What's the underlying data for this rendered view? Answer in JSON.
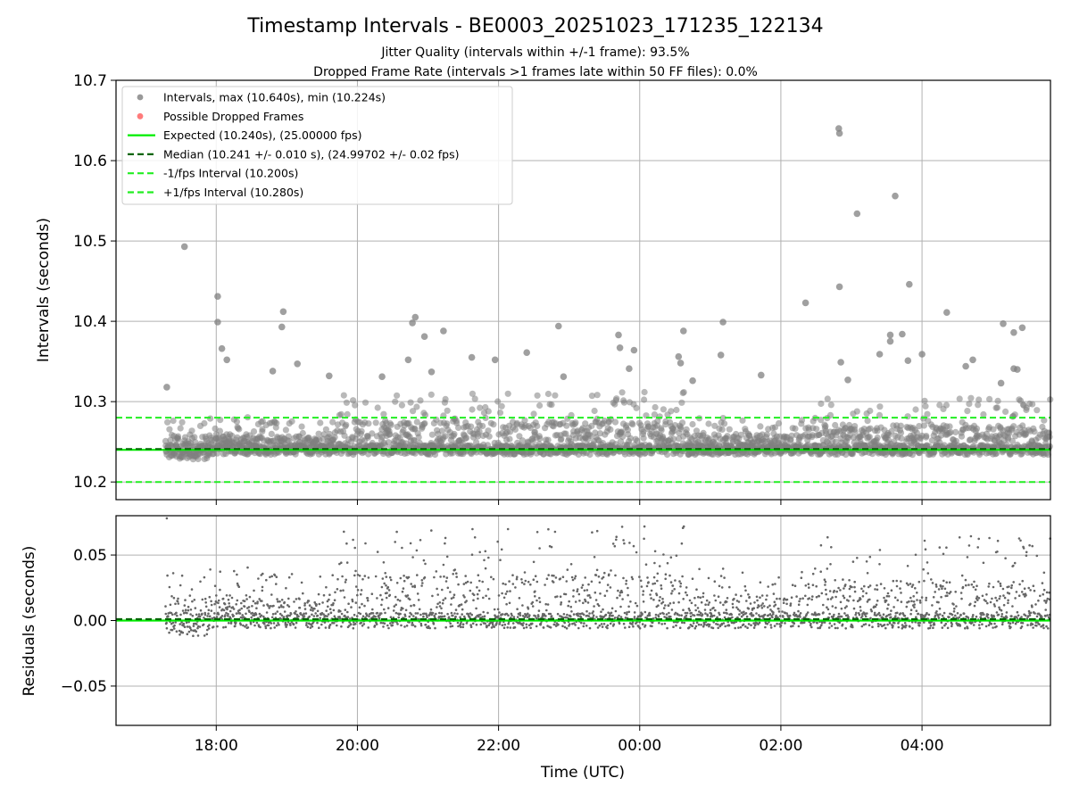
{
  "chart_data": [
    {
      "type": "scatter",
      "title": "Timestamp Intervals - BE0003_20251023_171235_122134",
      "subtitle_lines": [
        "Jitter Quality (intervals within +/-1 frame): 93.5%",
        "Dropped Frame Rate (intervals >1 frames late within 50 FF files): 0.0%"
      ],
      "ylabel": "Intervals (seconds)",
      "xlim_hours": [
        16.58,
        29.82
      ],
      "ylim": [
        10.178,
        10.7
      ],
      "yticks": [
        10.2,
        10.3,
        10.4,
        10.5,
        10.6,
        10.7
      ],
      "ytick_labels": [
        "10.2",
        "10.3",
        "10.4",
        "10.5",
        "10.6",
        "10.7"
      ],
      "grid": true,
      "legend_position": "upper-left",
      "legend": [
        {
          "label": "Intervals, max (10.640s), min (10.224s)",
          "kind": "marker",
          "color": "#808080"
        },
        {
          "label": "Possible Dropped Frames",
          "kind": "marker",
          "color": "#ff5a5a"
        },
        {
          "label": "Expected (10.240s), (25.00000 fps)",
          "kind": "solid",
          "color": "#00ee00"
        },
        {
          "label": "Median (10.241 +/- 0.010 s), (24.99702 +/- 0.02 fps)",
          "kind": "dashed",
          "color": "#006400"
        },
        {
          "label": "-1/fps Interval (10.200s)",
          "kind": "dashed",
          "color": "#22ee22"
        },
        {
          "label": "+1/fps Interval (10.280s)",
          "kind": "dashed",
          "color": "#22ee22"
        }
      ],
      "reference_lines": [
        {
          "name": "expected",
          "y": 10.24,
          "style": "solid",
          "color": "#00ee00"
        },
        {
          "name": "median",
          "y": 10.241,
          "style": "dashed",
          "color": "#006400"
        },
        {
          "name": "minus-one-frame",
          "y": 10.2,
          "style": "dashed",
          "color": "#22ee22"
        },
        {
          "name": "plus-one-frame",
          "y": 10.28,
          "style": "dashed",
          "color": "#22ee22"
        }
      ],
      "outliers": [
        {
          "x": 17.3,
          "y": 10.318
        },
        {
          "x": 17.55,
          "y": 10.493
        },
        {
          "x": 18.02,
          "y": 10.431
        },
        {
          "x": 18.02,
          "y": 10.399
        },
        {
          "x": 18.08,
          "y": 10.366
        },
        {
          "x": 18.15,
          "y": 10.352
        },
        {
          "x": 18.95,
          "y": 10.412
        },
        {
          "x": 18.93,
          "y": 10.393
        },
        {
          "x": 18.8,
          "y": 10.338
        },
        {
          "x": 19.15,
          "y": 10.347
        },
        {
          "x": 19.6,
          "y": 10.332
        },
        {
          "x": 20.35,
          "y": 10.331
        },
        {
          "x": 20.72,
          "y": 10.352
        },
        {
          "x": 20.82,
          "y": 10.405
        },
        {
          "x": 20.78,
          "y": 10.398
        },
        {
          "x": 20.95,
          "y": 10.381
        },
        {
          "x": 21.05,
          "y": 10.337
        },
        {
          "x": 21.22,
          "y": 10.388
        },
        {
          "x": 21.62,
          "y": 10.355
        },
        {
          "x": 21.95,
          "y": 10.352
        },
        {
          "x": 22.4,
          "y": 10.361
        },
        {
          "x": 22.85,
          "y": 10.394
        },
        {
          "x": 22.92,
          "y": 10.331
        },
        {
          "x": 23.7,
          "y": 10.383
        },
        {
          "x": 23.72,
          "y": 10.367
        },
        {
          "x": 23.85,
          "y": 10.341
        },
        {
          "x": 23.92,
          "y": 10.364
        },
        {
          "x": 24.55,
          "y": 10.356
        },
        {
          "x": 24.62,
          "y": 10.388
        },
        {
          "x": 24.58,
          "y": 10.348
        },
        {
          "x": 24.75,
          "y": 10.326
        },
        {
          "x": 25.15,
          "y": 10.358
        },
        {
          "x": 25.18,
          "y": 10.399
        },
        {
          "x": 25.72,
          "y": 10.333
        },
        {
          "x": 26.35,
          "y": 10.423
        },
        {
          "x": 26.82,
          "y": 10.64
        },
        {
          "x": 26.83,
          "y": 10.634
        },
        {
          "x": 26.83,
          "y": 10.443
        },
        {
          "x": 26.85,
          "y": 10.349
        },
        {
          "x": 26.95,
          "y": 10.327
        },
        {
          "x": 27.08,
          "y": 10.534
        },
        {
          "x": 27.4,
          "y": 10.359
        },
        {
          "x": 27.55,
          "y": 10.383
        },
        {
          "x": 27.55,
          "y": 10.375
        },
        {
          "x": 27.72,
          "y": 10.384
        },
        {
          "x": 27.62,
          "y": 10.556
        },
        {
          "x": 27.82,
          "y": 10.446
        },
        {
          "x": 27.8,
          "y": 10.351
        },
        {
          "x": 28.0,
          "y": 10.359
        },
        {
          "x": 28.35,
          "y": 10.411
        },
        {
          "x": 28.62,
          "y": 10.344
        },
        {
          "x": 28.72,
          "y": 10.352
        },
        {
          "x": 29.15,
          "y": 10.397
        },
        {
          "x": 29.3,
          "y": 10.386
        },
        {
          "x": 29.42,
          "y": 10.392
        },
        {
          "x": 29.3,
          "y": 10.341
        },
        {
          "x": 29.35,
          "y": 10.34
        },
        {
          "x": 29.12,
          "y": 10.323
        }
      ]
    },
    {
      "type": "scatter",
      "ylabel": "Residuals (seconds)",
      "xlabel": "Time (UTC)",
      "xlim_hours": [
        16.58,
        29.82
      ],
      "ylim": [
        -0.08,
        0.08
      ],
      "yticks": [
        -0.05,
        0.0,
        0.05
      ],
      "ytick_labels": [
        "−0.05",
        "0.00",
        "0.05"
      ],
      "xticks_hours": [
        18,
        20,
        22,
        24,
        26,
        28
      ],
      "xtick_labels": [
        "18:00",
        "20:00",
        "22:00",
        "00:00",
        "02:00",
        "04:00"
      ],
      "grid": true,
      "reference_lines": [
        {
          "name": "zero-residual",
          "y": 0.0,
          "style": "solid",
          "color": "#00ee00"
        },
        {
          "name": "median-residual",
          "y": 0.001,
          "style": "dashed",
          "color": "#006400"
        }
      ]
    }
  ],
  "colors": {
    "points": "#808080",
    "grid": "#b0b0b0",
    "frame": "#000000"
  }
}
